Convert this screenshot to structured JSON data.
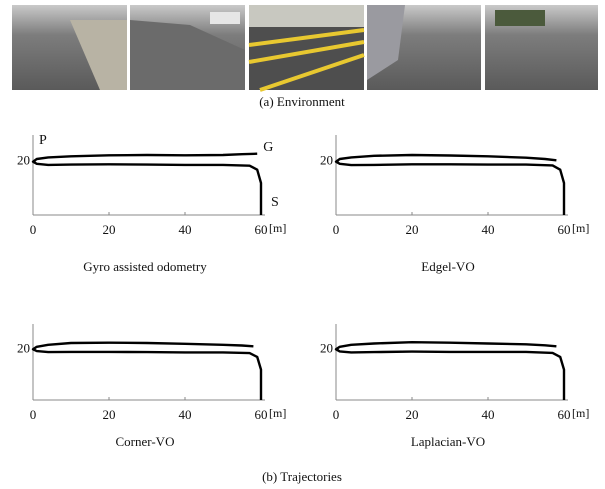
{
  "figure": {
    "environment_caption": "(a) Environment",
    "trajectories_caption": "(b) Trajectories"
  },
  "chart_data": [
    {
      "type": "line",
      "title": "Gyro assisted odometry",
      "x_label": "[m]",
      "annotations": [
        "P",
        "G",
        "S"
      ],
      "xlim": [
        0,
        60
      ],
      "ylim": [
        0,
        30
      ],
      "xticks": [
        0,
        20,
        40,
        60
      ],
      "yticks": [
        20
      ],
      "series": [
        {
          "color": "#000000",
          "x": [
            60,
            60,
            60,
            59,
            57,
            50,
            40,
            30,
            20,
            10,
            4,
            1,
            0,
            1,
            4,
            10,
            20,
            30,
            40,
            50,
            55,
            59
          ],
          "values": [
            0,
            5,
            12,
            17,
            18.5,
            18.8,
            18.8,
            18.9,
            19,
            18.9,
            18.8,
            19.2,
            20,
            21,
            21.6,
            22,
            22.4,
            22.5,
            22.4,
            22.5,
            22.8,
            23
          ]
        }
      ]
    },
    {
      "type": "line",
      "title": "Edgel-VO",
      "x_label": "[m]",
      "xlim": [
        0,
        60
      ],
      "ylim": [
        0,
        30
      ],
      "xticks": [
        0,
        20,
        40,
        60
      ],
      "yticks": [
        20
      ],
      "series": [
        {
          "color": "#000000",
          "x": [
            60,
            60,
            60,
            59,
            57,
            50,
            40,
            30,
            20,
            10,
            4,
            1,
            0,
            1,
            4,
            10,
            20,
            30,
            40,
            50,
            55,
            58
          ],
          "values": [
            0,
            5,
            12,
            17,
            18.6,
            18.9,
            18.9,
            19,
            19,
            18.8,
            18.7,
            19.2,
            20,
            21,
            21.6,
            22.2,
            22.5,
            22.3,
            22,
            21.5,
            21,
            20.5
          ]
        }
      ]
    },
    {
      "type": "line",
      "title": "Corner-VO",
      "x_label": "[m]",
      "xlim": [
        0,
        60
      ],
      "ylim": [
        0,
        30
      ],
      "xticks": [
        0,
        20,
        40,
        60
      ],
      "yticks": [
        20
      ],
      "series": [
        {
          "color": "#000000",
          "x": [
            60,
            60,
            60,
            59,
            57,
            50,
            40,
            30,
            20,
            10,
            4,
            1,
            0,
            1,
            4,
            10,
            20,
            30,
            40,
            50,
            55,
            58
          ],
          "values": [
            0,
            5,
            12,
            17,
            18.5,
            18.8,
            18.8,
            18.9,
            19,
            19,
            18.9,
            19.3,
            20,
            21,
            21.8,
            22.5,
            22.6,
            22.5,
            22.2,
            21.8,
            21.5,
            21.2
          ]
        }
      ]
    },
    {
      "type": "line",
      "title": "Laplacian-VO",
      "x_label": "[m]",
      "xlim": [
        0,
        60
      ],
      "ylim": [
        0,
        30
      ],
      "xticks": [
        0,
        20,
        40,
        60
      ],
      "yticks": [
        20
      ],
      "series": [
        {
          "color": "#000000",
          "x": [
            60,
            60,
            60,
            59,
            57,
            50,
            40,
            30,
            20,
            10,
            4,
            1,
            0,
            1,
            4,
            10,
            20,
            30,
            40,
            50,
            55,
            58
          ],
          "values": [
            0,
            5,
            12,
            17,
            18.6,
            19,
            19,
            19,
            19.1,
            18.9,
            18.8,
            19.2,
            20,
            21,
            21.8,
            22.3,
            22.8,
            22.6,
            22.3,
            22,
            21.6,
            21.2
          ]
        }
      ]
    }
  ]
}
